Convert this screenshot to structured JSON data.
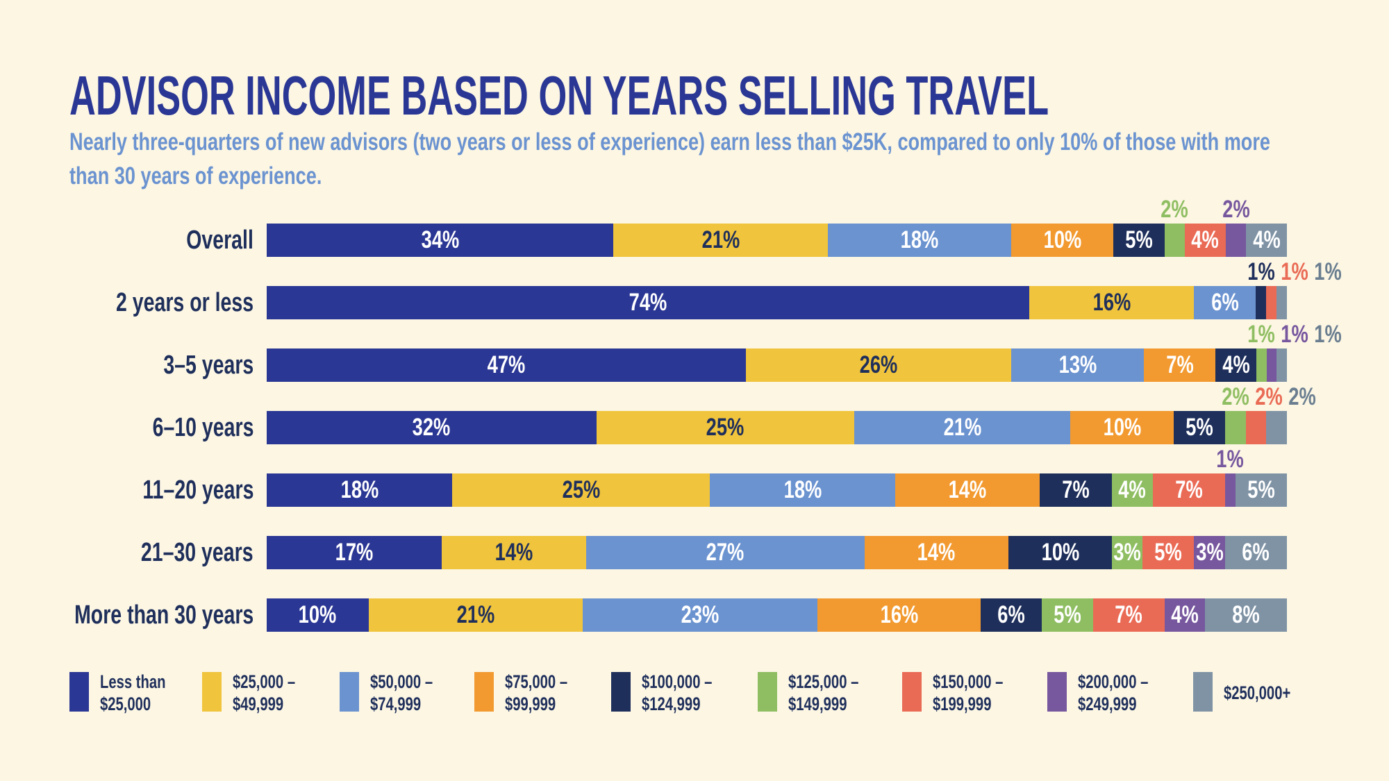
{
  "title": "ADVISOR INCOME BASED ON YEARS SELLING TRAVEL",
  "subtitle": "Nearly three-quarters of new advisors (two years or less of experience) earn less than $25K, compared to only 10% of those with more than 30 years of experience.",
  "chart_data": {
    "type": "bar",
    "orientation": "horizontal",
    "stacked": true,
    "value_unit": "%",
    "categories": [
      "Overall",
      "2 years or less",
      "3–5 years",
      "6–10 years",
      "11–20 years",
      "21–30 years",
      "More than 30 years"
    ],
    "legend_position": "bottom",
    "grid": false,
    "series": [
      {
        "name": "Less than\n$25,000",
        "color": "#2b3794",
        "values": [
          34,
          74,
          47,
          32,
          18,
          17,
          10
        ]
      },
      {
        "name": "$25,000 –\n$49,999",
        "color": "#f0c43c",
        "values": [
          21,
          16,
          26,
          25,
          25,
          14,
          21
        ]
      },
      {
        "name": "$50,000 –\n$74,999",
        "color": "#6b93d0",
        "values": [
          18,
          6,
          13,
          21,
          18,
          27,
          23
        ]
      },
      {
        "name": "$75,000 –\n$99,999",
        "color": "#f29a30",
        "values": [
          10,
          null,
          7,
          10,
          14,
          14,
          16
        ]
      },
      {
        "name": "$100,000 –\n$124,999",
        "color": "#1f2f5b",
        "values": [
          5,
          1,
          4,
          5,
          7,
          10,
          6
        ]
      },
      {
        "name": "$125,000 –\n$149,999",
        "color": "#8fbe62",
        "values": [
          2,
          null,
          1,
          2,
          4,
          3,
          5
        ]
      },
      {
        "name": "$150,000 –\n$199,999",
        "color": "#ea6b55",
        "values": [
          4,
          1,
          null,
          2,
          7,
          5,
          7
        ]
      },
      {
        "name": "$200,000 –\n$249,999",
        "color": "#77579e",
        "values": [
          2,
          null,
          1,
          null,
          1,
          3,
          4
        ]
      },
      {
        "name": "$250,000+",
        "color": "#7f93a5",
        "values": [
          4,
          1,
          1,
          2,
          5,
          6,
          8
        ]
      }
    ]
  }
}
